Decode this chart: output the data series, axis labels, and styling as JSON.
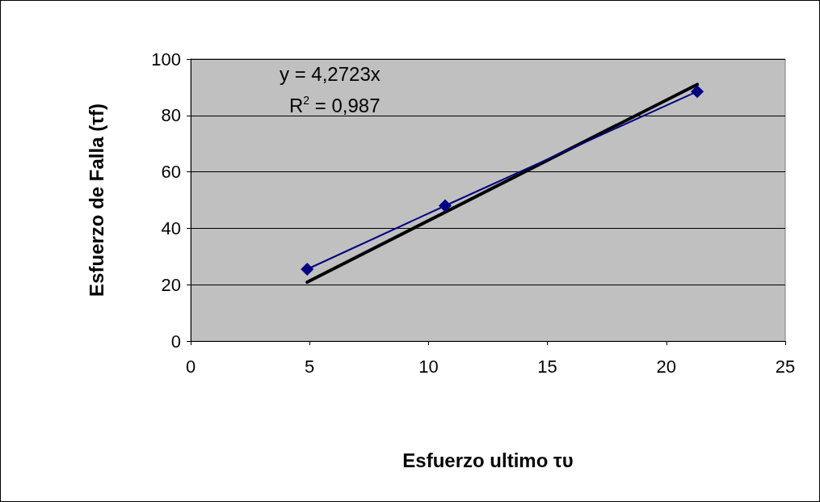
{
  "chart_data": {
    "type": "line",
    "xlabel": "Esfuerzo ultimo τυ",
    "ylabel": "Esfuerzo de Falla (τf)",
    "xlim": [
      0,
      25
    ],
    "xticks": [
      0,
      5,
      10,
      15,
      20,
      25
    ],
    "ylim": [
      0,
      100
    ],
    "yticks": [
      0,
      20,
      40,
      60,
      80,
      100
    ],
    "grid": "y",
    "marker": "diamond",
    "line_style": "solid",
    "series": [
      {
        "x": [
          4.9,
          10.7,
          21.3
        ],
        "values": [
          25.5,
          48,
          88.5
        ],
        "color": "#000080"
      },
      {
        "x": [
          4.9,
          21.3
        ],
        "values": [
          20.9,
          91
        ],
        "color": "#000000",
        "marker": "none"
      }
    ],
    "annotations": [
      "y = 4,2723x",
      "R$^{2}$ = 0,987"
    ]
  }
}
